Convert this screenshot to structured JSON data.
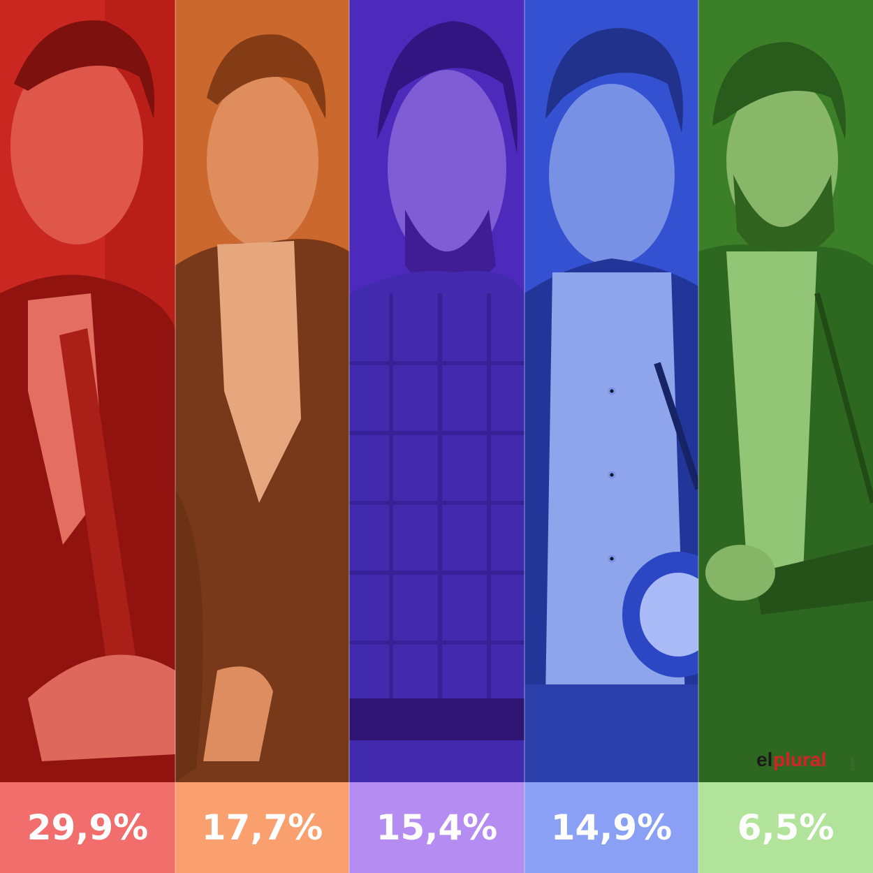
{
  "columns": [
    {
      "percentage": "29,9%",
      "overlay_color": "#d9201a",
      "bar_color": "#f26e6c"
    },
    {
      "percentage": "17,7%",
      "overlay_color": "#d2692a",
      "bar_color": "#fa9f6e"
    },
    {
      "percentage": "15,4%",
      "overlay_color": "#5a2ec9",
      "bar_color": "#b48cf2"
    },
    {
      "percentage": "14,9%",
      "overlay_color": "#3355d6",
      "bar_color": "#8aa0f5"
    },
    {
      "percentage": "6,5%",
      "overlay_color": "#3f8a2a",
      "bar_color": "#b2e39a"
    }
  ],
  "logo": {
    "part1": "el",
    "part2": "plural",
    "tag": "1.com"
  }
}
